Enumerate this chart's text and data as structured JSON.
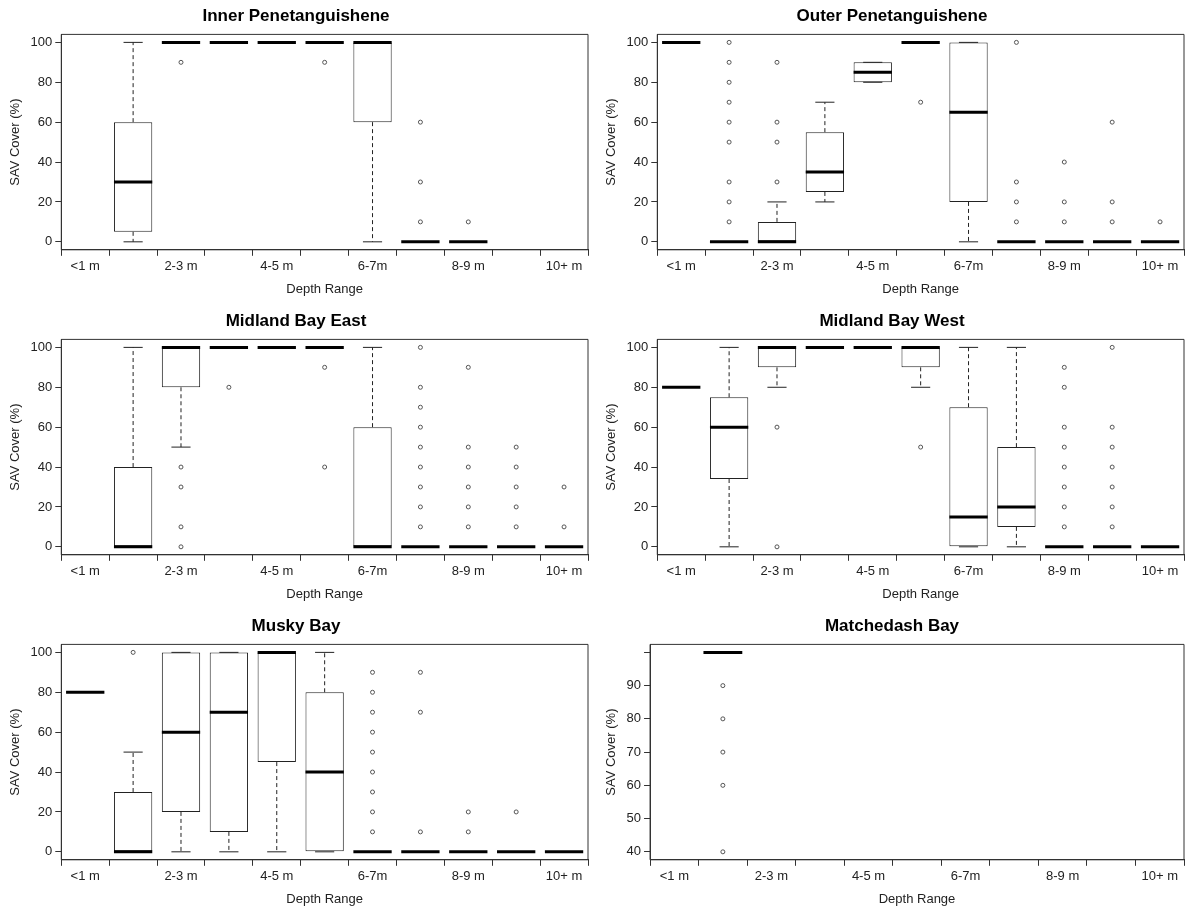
{
  "chart_data": [
    {
      "type": "box",
      "title": "Inner Penetanguishene",
      "xlabel": "Depth Range",
      "ylabel": "SAV Cover (%)",
      "categories": [
        "<1 m",
        null,
        "2-3 m",
        null,
        "4-5 m",
        null,
        "6-7m",
        null,
        "8-9 m",
        null,
        "10+ m"
      ],
      "ylim": [
        -4,
        104
      ],
      "yticks": [
        0,
        20,
        40,
        60,
        80,
        100
      ],
      "boxes": [
        null,
        {
          "low": 0,
          "q1": 5,
          "median": 30,
          "q3": 60,
          "high": 100
        },
        {
          "low": 100,
          "q1": 100,
          "median": 100,
          "q3": 100,
          "high": 100,
          "outliers": [
            90
          ]
        },
        {
          "low": 100,
          "q1": 100,
          "median": 100,
          "q3": 100,
          "high": 100
        },
        {
          "low": 100,
          "q1": 100,
          "median": 100,
          "q3": 100,
          "high": 100
        },
        {
          "low": 100,
          "q1": 100,
          "median": 100,
          "q3": 100,
          "high": 100,
          "outliers": [
            90
          ]
        },
        {
          "low": 0,
          "q1": 60,
          "median": 100,
          "q3": 100,
          "high": 100
        },
        {
          "low": 0,
          "q1": 0,
          "median": 0,
          "q3": 0,
          "high": 0,
          "outliers": [
            10,
            30,
            60
          ]
        },
        {
          "low": 0,
          "q1": 0,
          "median": 0,
          "q3": 0,
          "high": 0,
          "outliers": [
            10
          ]
        },
        null,
        null
      ]
    },
    {
      "type": "box",
      "title": "Outer Penetanguishene",
      "xlabel": "Depth Range",
      "ylabel": "SAV Cover (%)",
      "categories": [
        "<1 m",
        null,
        "2-3 m",
        null,
        "4-5 m",
        null,
        "6-7m",
        null,
        "8-9 m",
        null,
        "10+ m"
      ],
      "ylim": [
        -4,
        104
      ],
      "yticks": [
        0,
        20,
        40,
        60,
        80,
        100
      ],
      "boxes": [
        {
          "low": 100,
          "q1": 100,
          "median": 100,
          "q3": 100,
          "high": 100
        },
        {
          "low": 0,
          "q1": 0,
          "median": 0,
          "q3": 0,
          "high": 0,
          "outliers": [
            10,
            20,
            30,
            50,
            60,
            70,
            80,
            90,
            100
          ]
        },
        {
          "low": 0,
          "q1": 0,
          "median": 0,
          "q3": 10,
          "high": 20,
          "outliers": [
            30,
            50,
            60,
            90
          ]
        },
        {
          "low": 20,
          "q1": 25,
          "median": 35,
          "q3": 55,
          "high": 70
        },
        {
          "low": 80,
          "q1": 80,
          "median": 85,
          "q3": 90,
          "high": 90
        },
        {
          "low": 100,
          "q1": 100,
          "median": 100,
          "q3": 100,
          "high": 100,
          "outliers": [
            70
          ]
        },
        {
          "low": 0,
          "q1": 20,
          "median": 65,
          "q3": 100,
          "high": 100
        },
        {
          "low": 0,
          "q1": 0,
          "median": 0,
          "q3": 0,
          "high": 0,
          "outliers": [
            10,
            20,
            30,
            100
          ]
        },
        {
          "low": 0,
          "q1": 0,
          "median": 0,
          "q3": 0,
          "high": 0,
          "outliers": [
            10,
            20,
            40
          ]
        },
        {
          "low": 0,
          "q1": 0,
          "median": 0,
          "q3": 0,
          "high": 0,
          "outliers": [
            10,
            20,
            60
          ]
        },
        {
          "low": 0,
          "q1": 0,
          "median": 0,
          "q3": 0,
          "high": 0,
          "outliers": [
            10
          ]
        }
      ]
    },
    {
      "type": "box",
      "title": "Midland Bay East",
      "xlabel": "Depth Range",
      "ylabel": "SAV Cover (%)",
      "categories": [
        "<1 m",
        null,
        "2-3 m",
        null,
        "4-5 m",
        null,
        "6-7m",
        null,
        "8-9 m",
        null,
        "10+ m"
      ],
      "ylim": [
        -4,
        104
      ],
      "yticks": [
        0,
        20,
        40,
        60,
        80,
        100
      ],
      "boxes": [
        null,
        {
          "low": 0,
          "q1": 0,
          "median": 0,
          "q3": 40,
          "high": 100
        },
        {
          "low": 50,
          "q1": 80,
          "median": 100,
          "q3": 100,
          "high": 100,
          "outliers": [
            0,
            10,
            30,
            40
          ]
        },
        {
          "low": 100,
          "q1": 100,
          "median": 100,
          "q3": 100,
          "high": 100,
          "outliers": [
            80
          ]
        },
        {
          "low": 100,
          "q1": 100,
          "median": 100,
          "q3": 100,
          "high": 100
        },
        {
          "low": 100,
          "q1": 100,
          "median": 100,
          "q3": 100,
          "high": 100,
          "outliers": [
            40,
            90
          ]
        },
        {
          "low": 0,
          "q1": 0,
          "median": 0,
          "q3": 60,
          "high": 100
        },
        {
          "low": 0,
          "q1": 0,
          "median": 0,
          "q3": 0,
          "high": 0,
          "outliers": [
            10,
            20,
            30,
            40,
            50,
            60,
            70,
            80,
            100
          ]
        },
        {
          "low": 0,
          "q1": 0,
          "median": 0,
          "q3": 0,
          "high": 0,
          "outliers": [
            10,
            20,
            30,
            40,
            50,
            90
          ]
        },
        {
          "low": 0,
          "q1": 0,
          "median": 0,
          "q3": 0,
          "high": 0,
          "outliers": [
            10,
            20,
            30,
            40,
            50
          ]
        },
        {
          "low": 0,
          "q1": 0,
          "median": 0,
          "q3": 0,
          "high": 0,
          "outliers": [
            10,
            30
          ]
        }
      ]
    },
    {
      "type": "box",
      "title": "Midland Bay West",
      "xlabel": "Depth Range",
      "ylabel": "SAV Cover (%)",
      "categories": [
        "<1 m",
        null,
        "2-3 m",
        null,
        "4-5 m",
        null,
        "6-7m",
        null,
        "8-9 m",
        null,
        "10+ m"
      ],
      "ylim": [
        -4,
        104
      ],
      "yticks": [
        0,
        20,
        40,
        60,
        80,
        100
      ],
      "boxes": [
        {
          "low": 80,
          "q1": 80,
          "median": 80,
          "q3": 80,
          "high": 80
        },
        {
          "low": 0,
          "q1": 34,
          "median": 60,
          "q3": 75,
          "high": 100
        },
        {
          "low": 80,
          "q1": 90,
          "median": 100,
          "q3": 100,
          "high": 100,
          "outliers": [
            0,
            60
          ]
        },
        {
          "low": 100,
          "q1": 100,
          "median": 100,
          "q3": 100,
          "high": 100
        },
        {
          "low": 100,
          "q1": 100,
          "median": 100,
          "q3": 100,
          "high": 100
        },
        {
          "low": 80,
          "q1": 90,
          "median": 100,
          "q3": 100,
          "high": 100,
          "outliers": [
            50
          ]
        },
        {
          "low": 0,
          "q1": 0,
          "median": 15,
          "q3": 70,
          "high": 100
        },
        {
          "low": 0,
          "q1": 10,
          "median": 20,
          "q3": 50,
          "high": 100
        },
        {
          "low": 0,
          "q1": 0,
          "median": 0,
          "q3": 0,
          "high": 0,
          "outliers": [
            10,
            20,
            30,
            40,
            50,
            60,
            80,
            90
          ]
        },
        {
          "low": 0,
          "q1": 0,
          "median": 0,
          "q3": 0,
          "high": 0,
          "outliers": [
            10,
            20,
            30,
            40,
            50,
            60,
            100
          ]
        },
        {
          "low": 0,
          "q1": 0,
          "median": 0,
          "q3": 0,
          "high": 0
        }
      ]
    },
    {
      "type": "box",
      "title": "Musky Bay",
      "xlabel": "Depth Range",
      "ylabel": "SAV Cover (%)",
      "categories": [
        "<1 m",
        null,
        "2-3 m",
        null,
        "4-5 m",
        null,
        "6-7m",
        null,
        "8-9 m",
        null,
        "10+ m"
      ],
      "ylim": [
        -4,
        104
      ],
      "yticks": [
        0,
        20,
        40,
        60,
        80,
        100
      ],
      "boxes": [
        {
          "low": 80,
          "q1": 80,
          "median": 80,
          "q3": 80,
          "high": 80
        },
        {
          "low": 0,
          "q1": 0,
          "median": 0,
          "q3": 30,
          "high": 50,
          "outliers": [
            100
          ]
        },
        {
          "low": 0,
          "q1": 20,
          "median": 60,
          "q3": 100,
          "high": 100
        },
        {
          "low": 0,
          "q1": 10,
          "median": 70,
          "q3": 100,
          "high": 100
        },
        {
          "low": 0,
          "q1": 45,
          "median": 100,
          "q3": 100,
          "high": 100
        },
        {
          "low": 0,
          "q1": 0,
          "median": 40,
          "q3": 80,
          "high": 100
        },
        {
          "low": 0,
          "q1": 0,
          "median": 0,
          "q3": 0,
          "high": 0,
          "outliers": [
            10,
            20,
            30,
            40,
            50,
            60,
            70,
            80,
            90
          ]
        },
        {
          "low": 0,
          "q1": 0,
          "median": 0,
          "q3": 0,
          "high": 0,
          "outliers": [
            10,
            70,
            90
          ]
        },
        {
          "low": 0,
          "q1": 0,
          "median": 0,
          "q3": 0,
          "high": 0,
          "outliers": [
            10,
            20
          ]
        },
        {
          "low": 0,
          "q1": 0,
          "median": 0,
          "q3": 0,
          "high": 0,
          "outliers": [
            20
          ]
        },
        {
          "low": 0,
          "q1": 0,
          "median": 0,
          "q3": 0,
          "high": 0
        }
      ]
    },
    {
      "type": "box",
      "title": "Matchedash Bay",
      "xlabel": "Depth Range",
      "ylabel": "SAV Cover (%)",
      "categories": [
        "<1 m",
        null,
        "2-3 m",
        null,
        "4-5 m",
        null,
        "6-7m",
        null,
        "8-9 m",
        null,
        "10+ m"
      ],
      "ylim": [
        37.6,
        102.4
      ],
      "yticks": [
        40,
        50,
        60,
        70,
        80,
        90,
        {
          "value": 100,
          "label": null
        }
      ],
      "boxes": [
        null,
        {
          "low": 100,
          "q1": 100,
          "median": 100,
          "q3": 100,
          "high": 100,
          "outliers": [
            40,
            60,
            70,
            80,
            90
          ]
        },
        null,
        null,
        null,
        null,
        null,
        null,
        null,
        null,
        null
      ]
    }
  ]
}
